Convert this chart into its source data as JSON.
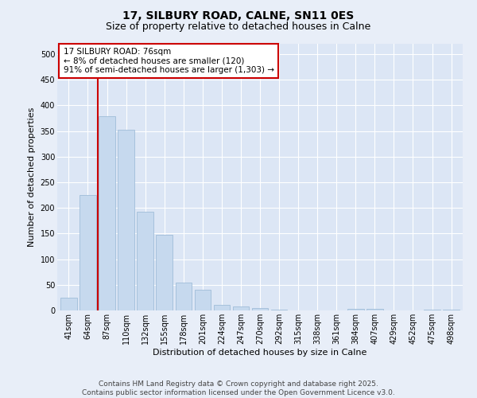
{
  "title": "17, SILBURY ROAD, CALNE, SN11 0ES",
  "subtitle": "Size of property relative to detached houses in Calne",
  "xlabel": "Distribution of detached houses by size in Calne",
  "ylabel": "Number of detached properties",
  "categories": [
    "41sqm",
    "64sqm",
    "87sqm",
    "110sqm",
    "132sqm",
    "155sqm",
    "178sqm",
    "201sqm",
    "224sqm",
    "247sqm",
    "270sqm",
    "292sqm",
    "315sqm",
    "338sqm",
    "361sqm",
    "384sqm",
    "407sqm",
    "429sqm",
    "452sqm",
    "475sqm",
    "498sqm"
  ],
  "values": [
    25,
    225,
    378,
    352,
    193,
    147,
    55,
    40,
    11,
    7,
    4,
    2,
    0,
    0,
    0,
    3,
    3,
    0,
    0,
    2,
    2
  ],
  "bar_color": "#c6d9ee",
  "bar_edge_color": "#a0bdd8",
  "vline_x": 1.5,
  "vline_color": "#cc0000",
  "annotation_text": "17 SILBURY ROAD: 76sqm\n← 8% of detached houses are smaller (120)\n91% of semi-detached houses are larger (1,303) →",
  "annotation_box_color": "#ffffff",
  "annotation_box_edge": "#cc0000",
  "ylim": [
    0,
    520
  ],
  "yticks": [
    0,
    50,
    100,
    150,
    200,
    250,
    300,
    350,
    400,
    450,
    500
  ],
  "background_color": "#dce6f5",
  "fig_background_color": "#e8eef8",
  "footer_text": "Contains HM Land Registry data © Crown copyright and database right 2025.\nContains public sector information licensed under the Open Government Licence v3.0.",
  "title_fontsize": 10,
  "subtitle_fontsize": 9,
  "axis_label_fontsize": 8,
  "tick_fontsize": 7,
  "annotation_fontsize": 7.5,
  "footer_fontsize": 6.5
}
